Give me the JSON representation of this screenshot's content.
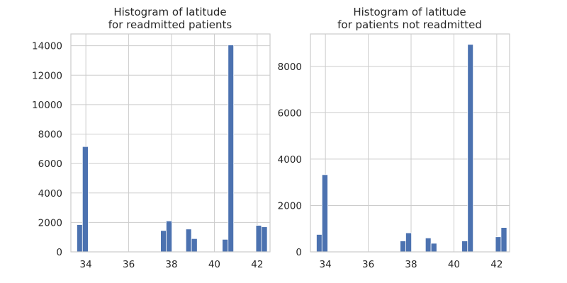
{
  "chart_data": [
    {
      "type": "bar",
      "title_lines": [
        "Histogram of latitude",
        "for readmitted patients"
      ],
      "xlabel": "",
      "ylabel": "",
      "xlim": [
        33.3,
        42.6
      ],
      "ylim": [
        0,
        14800
      ],
      "xticks": [
        34,
        36,
        38,
        40,
        42
      ],
      "yticks": [
        0,
        2000,
        4000,
        6000,
        8000,
        10000,
        12000,
        14000
      ],
      "grid": true,
      "bar_color": "#4c72b0",
      "bins": [
        {
          "x0": 33.58,
          "x1": 33.84,
          "value": 1850
        },
        {
          "x0": 33.84,
          "x1": 34.11,
          "value": 7150
        },
        {
          "x0": 37.49,
          "x1": 37.75,
          "value": 1450
        },
        {
          "x0": 37.75,
          "x1": 38.02,
          "value": 2100
        },
        {
          "x0": 38.67,
          "x1": 38.93,
          "value": 1550
        },
        {
          "x0": 38.93,
          "x1": 39.2,
          "value": 900
        },
        {
          "x0": 40.37,
          "x1": 40.64,
          "value": 850
        },
        {
          "x0": 40.64,
          "x1": 40.9,
          "value": 14050
        },
        {
          "x0": 41.94,
          "x1": 42.2,
          "value": 1800
        },
        {
          "x0": 42.2,
          "x1": 42.47,
          "value": 1700
        }
      ]
    },
    {
      "type": "bar",
      "title_lines": [
        "Histogram of latitude",
        "for patients not readmitted"
      ],
      "xlabel": "",
      "ylabel": "",
      "xlim": [
        33.3,
        42.6
      ],
      "ylim": [
        0,
        9400
      ],
      "xticks": [
        34,
        36,
        38,
        40,
        42
      ],
      "yticks": [
        0,
        2000,
        4000,
        6000,
        8000
      ],
      "grid": true,
      "bar_color": "#4c72b0",
      "bins": [
        {
          "x0": 33.58,
          "x1": 33.84,
          "value": 750
        },
        {
          "x0": 33.84,
          "x1": 34.11,
          "value": 3330
        },
        {
          "x0": 37.49,
          "x1": 37.75,
          "value": 470
        },
        {
          "x0": 37.75,
          "x1": 38.02,
          "value": 820
        },
        {
          "x0": 38.67,
          "x1": 38.93,
          "value": 600
        },
        {
          "x0": 38.93,
          "x1": 39.2,
          "value": 370
        },
        {
          "x0": 40.37,
          "x1": 40.64,
          "value": 470
        },
        {
          "x0": 40.64,
          "x1": 40.9,
          "value": 8950
        },
        {
          "x0": 41.94,
          "x1": 42.2,
          "value": 650
        },
        {
          "x0": 42.2,
          "x1": 42.47,
          "value": 1050
        }
      ]
    }
  ]
}
